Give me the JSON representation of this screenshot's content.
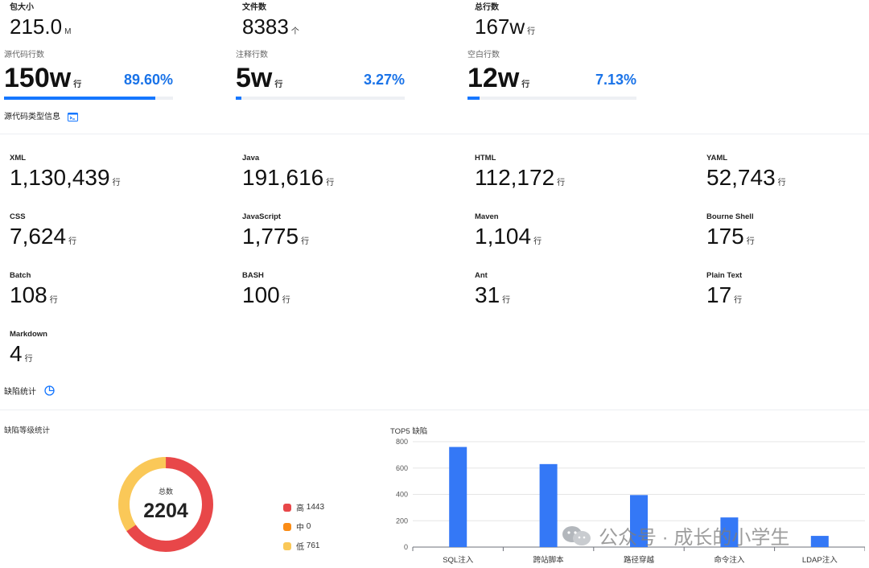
{
  "summary": {
    "pkg": {
      "label": "包大小",
      "value": "215.0",
      "unit": "M"
    },
    "files": {
      "label": "文件数",
      "value": "8383",
      "unit": "个"
    },
    "lines": {
      "label": "总行数",
      "value": "167w",
      "unit": "行"
    }
  },
  "breakdown": [
    {
      "label": "源代码行数",
      "value": "150w",
      "unit": "行",
      "percent": "89.60%",
      "fraction": 0.896
    },
    {
      "label": "注释行数",
      "value": "5w",
      "unit": "行",
      "percent": "3.27%",
      "fraction": 0.0327
    },
    {
      "label": "空白行数",
      "value": "12w",
      "unit": "行",
      "percent": "7.13%",
      "fraction": 0.0713
    }
  ],
  "source_types": {
    "title": "源代码类型信息",
    "icon": "terminal-icon",
    "unit": "行",
    "items": [
      {
        "name": "XML",
        "value": "1,130,439"
      },
      {
        "name": "Java",
        "value": "191,616"
      },
      {
        "name": "HTML",
        "value": "112,172"
      },
      {
        "name": "YAML",
        "value": "52,743"
      },
      {
        "name": "CSS",
        "value": "7,624"
      },
      {
        "name": "JavaScript",
        "value": "1,775"
      },
      {
        "name": "Maven",
        "value": "1,104"
      },
      {
        "name": "Bourne Shell",
        "value": "175"
      },
      {
        "name": "Batch",
        "value": "108"
      },
      {
        "name": "BASH",
        "value": "100"
      },
      {
        "name": "Ant",
        "value": "31"
      },
      {
        "name": "Plain Text",
        "value": "17"
      },
      {
        "name": "Markdown",
        "value": "4"
      }
    ]
  },
  "defects": {
    "title": "缺陷统计",
    "icon": "pie-chart-icon",
    "level_title": "缺陷等级统计",
    "total_label": "总数",
    "total": "2204",
    "levels": [
      {
        "name": "高",
        "count": 1443,
        "text": "1443",
        "color": "#e84749"
      },
      {
        "name": "中",
        "count": 0,
        "text": "0",
        "color": "#fa8c16"
      },
      {
        "name": "低",
        "count": 761,
        "text": "761",
        "color": "#fac858"
      }
    ]
  },
  "chart_data": {
    "type": "bar",
    "title": "TOP5 缺陷",
    "categories": [
      "SQL注入",
      "跨站脚本",
      "路径穿越",
      "命令注入",
      "LDAP注入"
    ],
    "values": [
      760,
      630,
      395,
      225,
      85
    ],
    "ylim": [
      0,
      800
    ],
    "yticks": [
      0,
      200,
      400,
      600,
      800
    ],
    "grid": true,
    "color": "#3478f6"
  },
  "watermark": "公众号 · 成长的小学生"
}
